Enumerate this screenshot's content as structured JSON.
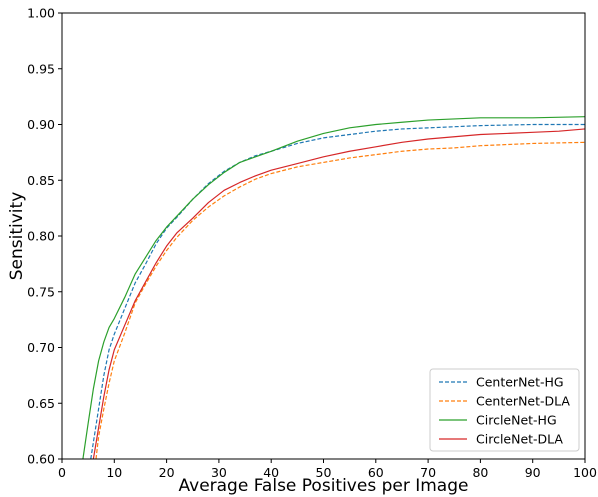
{
  "chart_data": {
    "type": "line",
    "title": "",
    "xlabel": "Average False Positives per Image",
    "ylabel": "Sensitivity",
    "xlim": [
      0,
      100
    ],
    "ylim": [
      0.6,
      1.0
    ],
    "xticks": [
      0,
      10,
      20,
      30,
      40,
      50,
      60,
      70,
      80,
      90,
      100
    ],
    "yticks": [
      0.6,
      0.65,
      0.7,
      0.75,
      0.8,
      0.85,
      0.9,
      0.95,
      1.0
    ],
    "grid": false,
    "legend_position": "lower-right",
    "series": [
      {
        "name": "CenterNet-HG",
        "color": "#1f77b4",
        "dash": "dashed",
        "points": [
          [
            5.5,
            0.6
          ],
          [
            6,
            0.615
          ],
          [
            7,
            0.645
          ],
          [
            8,
            0.675
          ],
          [
            9,
            0.698
          ],
          [
            10,
            0.712
          ],
          [
            12,
            0.735
          ],
          [
            14,
            0.758
          ],
          [
            16,
            0.775
          ],
          [
            18,
            0.793
          ],
          [
            20,
            0.807
          ],
          [
            22,
            0.817
          ],
          [
            25,
            0.833
          ],
          [
            28,
            0.847
          ],
          [
            31,
            0.858
          ],
          [
            34,
            0.866
          ],
          [
            37,
            0.872
          ],
          [
            40,
            0.876
          ],
          [
            45,
            0.883
          ],
          [
            50,
            0.888
          ],
          [
            55,
            0.891
          ],
          [
            60,
            0.894
          ],
          [
            65,
            0.896
          ],
          [
            70,
            0.897
          ],
          [
            75,
            0.898
          ],
          [
            80,
            0.899
          ],
          [
            90,
            0.9
          ],
          [
            100,
            0.9
          ]
        ]
      },
      {
        "name": "CenterNet-DLA",
        "color": "#ff7f0e",
        "dash": "dashed",
        "points": [
          [
            6.5,
            0.6
          ],
          [
            7,
            0.62
          ],
          [
            8,
            0.645
          ],
          [
            9,
            0.668
          ],
          [
            10,
            0.688
          ],
          [
            12,
            0.713
          ],
          [
            14,
            0.74
          ],
          [
            16,
            0.757
          ],
          [
            18,
            0.773
          ],
          [
            20,
            0.787
          ],
          [
            22,
            0.799
          ],
          [
            25,
            0.814
          ],
          [
            28,
            0.826
          ],
          [
            31,
            0.836
          ],
          [
            34,
            0.844
          ],
          [
            37,
            0.851
          ],
          [
            40,
            0.856
          ],
          [
            45,
            0.862
          ],
          [
            50,
            0.866
          ],
          [
            55,
            0.87
          ],
          [
            60,
            0.873
          ],
          [
            65,
            0.876
          ],
          [
            70,
            0.878
          ],
          [
            75,
            0.879
          ],
          [
            80,
            0.881
          ],
          [
            85,
            0.882
          ],
          [
            90,
            0.883
          ],
          [
            100,
            0.884
          ]
        ]
      },
      {
        "name": "CircleNet-HG",
        "color": "#2ca02c",
        "dash": "solid",
        "points": [
          [
            4,
            0.6
          ],
          [
            5,
            0.632
          ],
          [
            6,
            0.663
          ],
          [
            7,
            0.688
          ],
          [
            8,
            0.705
          ],
          [
            9,
            0.718
          ],
          [
            10,
            0.726
          ],
          [
            12,
            0.745
          ],
          [
            14,
            0.766
          ],
          [
            16,
            0.781
          ],
          [
            18,
            0.796
          ],
          [
            20,
            0.808
          ],
          [
            22,
            0.818
          ],
          [
            25,
            0.833
          ],
          [
            28,
            0.846
          ],
          [
            31,
            0.857
          ],
          [
            34,
            0.866
          ],
          [
            37,
            0.871
          ],
          [
            40,
            0.876
          ],
          [
            45,
            0.885
          ],
          [
            50,
            0.892
          ],
          [
            55,
            0.897
          ],
          [
            60,
            0.9
          ],
          [
            65,
            0.902
          ],
          [
            70,
            0.904
          ],
          [
            75,
            0.905
          ],
          [
            80,
            0.906
          ],
          [
            90,
            0.906
          ],
          [
            100,
            0.907
          ]
        ]
      },
      {
        "name": "CircleNet-DLA",
        "color": "#d62728",
        "dash": "solid",
        "points": [
          [
            6,
            0.6
          ],
          [
            7,
            0.628
          ],
          [
            8,
            0.656
          ],
          [
            9,
            0.68
          ],
          [
            10,
            0.698
          ],
          [
            12,
            0.72
          ],
          [
            14,
            0.742
          ],
          [
            16,
            0.759
          ],
          [
            18,
            0.776
          ],
          [
            20,
            0.791
          ],
          [
            22,
            0.803
          ],
          [
            25,
            0.816
          ],
          [
            28,
            0.83
          ],
          [
            31,
            0.841
          ],
          [
            34,
            0.848
          ],
          [
            37,
            0.854
          ],
          [
            40,
            0.859
          ],
          [
            45,
            0.865
          ],
          [
            50,
            0.871
          ],
          [
            55,
            0.876
          ],
          [
            60,
            0.88
          ],
          [
            65,
            0.884
          ],
          [
            70,
            0.887
          ],
          [
            75,
            0.889
          ],
          [
            80,
            0.891
          ],
          [
            85,
            0.892
          ],
          [
            90,
            0.893
          ],
          [
            95,
            0.894
          ],
          [
            100,
            0.896
          ]
        ]
      }
    ]
  }
}
